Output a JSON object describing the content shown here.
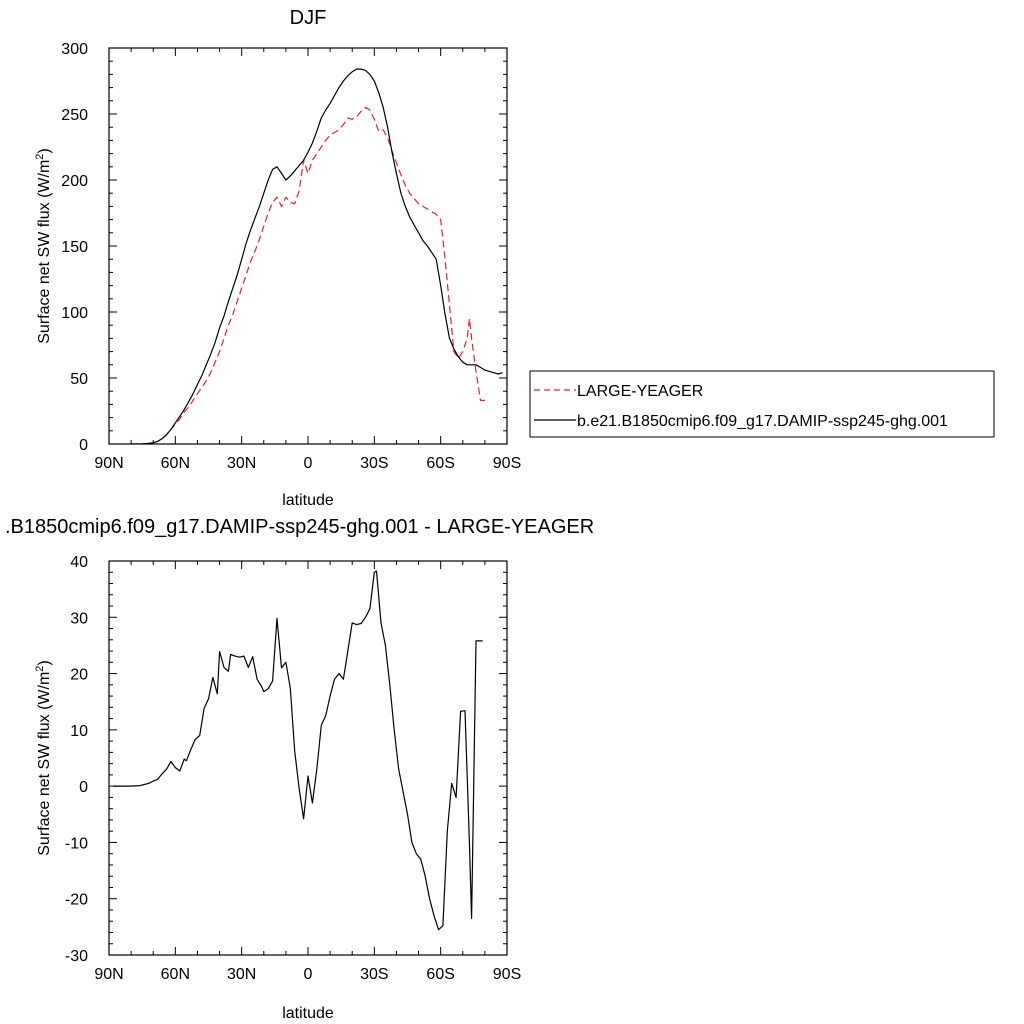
{
  "chart_data": [
    {
      "type": "line",
      "title": "DJF",
      "xlabel": "latitude",
      "ylabel": "Surface net SW flux (W/m",
      "ylabel_sup": "2",
      "ylabel_end": ")",
      "xlim": [
        -90,
        90
      ],
      "ylim": [
        0,
        300
      ],
      "xticks": [
        -90,
        -60,
        -30,
        0,
        30,
        60,
        90
      ],
      "xtick_labels": [
        "90N",
        "60N",
        "30N",
        "0",
        "30S",
        "60S",
        "90S"
      ],
      "yticks": [
        0,
        50,
        100,
        150,
        200,
        250,
        300
      ],
      "ytick_labels": [
        "0",
        "50",
        "100",
        "150",
        "200",
        "250",
        "300"
      ],
      "grid": false,
      "legend_placement": "right",
      "series": [
        {
          "name": "LARGE-YEAGER",
          "color": "#e8202a",
          "dash": "dashed",
          "x": [
            -80,
            -75,
            -72,
            -70,
            -68,
            -66,
            -64,
            -62,
            -60,
            -58,
            -56,
            -54,
            -52,
            -50,
            -48,
            -46,
            -44,
            -42,
            -40,
            -38,
            -36,
            -34,
            -32,
            -30,
            -28,
            -26,
            -24,
            -22,
            -20,
            -18,
            -16,
            -14,
            -12,
            -10,
            -8,
            -6,
            -4,
            -2,
            0,
            2,
            4,
            6,
            8,
            10,
            12,
            14,
            16,
            18,
            20,
            22,
            24,
            26,
            28,
            30,
            32,
            34,
            36,
            38,
            40,
            42,
            44,
            46,
            48,
            50,
            52,
            54,
            56,
            58,
            60,
            62,
            64,
            66,
            68,
            70,
            72,
            73,
            74,
            76,
            78,
            79,
            80
          ],
          "y": [
            0,
            0,
            0.5,
            1,
            2,
            4,
            7,
            11,
            15,
            19,
            24,
            28,
            33,
            38,
            43,
            48,
            54,
            62,
            70,
            80,
            90,
            98,
            108,
            118,
            128,
            138,
            146,
            155,
            165,
            175,
            183,
            187,
            180,
            187,
            183,
            182,
            192,
            215,
            205,
            215,
            220,
            225,
            230,
            234,
            236,
            238,
            242,
            247,
            246,
            248,
            252,
            255,
            253,
            246,
            237,
            238,
            232,
            222,
            213,
            204,
            196,
            190,
            186,
            182,
            180,
            178,
            176,
            174,
            170,
            140,
            105,
            70,
            65,
            70,
            80,
            95,
            80,
            55,
            33,
            33,
            33
          ]
        },
        {
          "name": "b.e21.B1850cmip6.f09_g17.DAMIP-ssp245-ghg.001",
          "color": "#000000",
          "dash": "solid",
          "x": [
            -80,
            -75,
            -72,
            -70,
            -68,
            -66,
            -64,
            -62,
            -60,
            -58,
            -56,
            -54,
            -52,
            -50,
            -48,
            -46,
            -44,
            -42,
            -40,
            -38,
            -36,
            -34,
            -32,
            -30,
            -28,
            -26,
            -24,
            -22,
            -20,
            -18,
            -16,
            -14,
            -12,
            -10,
            -8,
            -6,
            -4,
            -2,
            0,
            2,
            4,
            6,
            8,
            10,
            12,
            14,
            16,
            18,
            20,
            22,
            24,
            26,
            28,
            30,
            32,
            34,
            36,
            38,
            40,
            42,
            44,
            46,
            48,
            50,
            52,
            54,
            56,
            58,
            60,
            62,
            64,
            66,
            68,
            70,
            72,
            74,
            76,
            78,
            80,
            82,
            84,
            86,
            88
          ],
          "y": [
            0,
            0,
            0.5,
            1,
            2,
            4,
            7,
            11,
            16,
            21,
            26,
            32,
            38,
            45,
            52,
            60,
            68,
            77,
            88,
            97,
            108,
            118,
            128,
            140,
            152,
            162,
            171,
            180,
            190,
            200,
            208,
            210,
            205,
            200,
            203,
            207,
            211,
            215,
            221,
            228,
            237,
            247,
            253,
            258,
            264,
            270,
            275,
            279,
            282,
            284,
            284,
            283,
            280,
            275,
            266,
            255,
            240,
            221,
            205,
            190,
            180,
            172,
            166,
            160,
            154,
            150,
            145,
            140,
            120,
            98,
            80,
            72,
            66,
            62,
            60,
            60,
            60,
            58,
            56,
            55,
            54,
            53,
            54
          ]
        }
      ]
    },
    {
      "type": "line",
      "title": ".B1850cmip6.f09_g17.DAMIP-ssp245-ghg.001 - LARGE-YEAGER",
      "xlabel": "latitude",
      "ylabel": "Surface net SW flux (W/m",
      "ylabel_sup": "2",
      "ylabel_end": ")",
      "xlim": [
        -90,
        90
      ],
      "ylim": [
        -30,
        40
      ],
      "xticks": [
        -90,
        -60,
        -30,
        0,
        30,
        60,
        90
      ],
      "xtick_labels": [
        "90N",
        "60N",
        "30N",
        "0",
        "30S",
        "60S",
        "90S"
      ],
      "yticks": [
        -30,
        -20,
        -10,
        0,
        10,
        20,
        30,
        40
      ],
      "ytick_labels": [
        "-30",
        "-20",
        "-10",
        "0",
        "10",
        "20",
        "30",
        "40"
      ],
      "grid": false,
      "series": [
        {
          "color": "#000000",
          "dash": "solid",
          "x": [
            -88,
            -80,
            -76,
            -74,
            -72,
            -70,
            -68,
            -66,
            -64,
            -62,
            -60,
            -58,
            -56,
            -55,
            -53,
            -51,
            -49,
            -47,
            -45,
            -43,
            -41,
            -40,
            -38,
            -36,
            -35,
            -33,
            -31,
            -29,
            -27,
            -25,
            -23,
            -21,
            -20,
            -18,
            -16,
            -14,
            -12,
            -10,
            -8,
            -6,
            -4,
            -2,
            0,
            2,
            4,
            6,
            8,
            10,
            12,
            14,
            16,
            18,
            20,
            22,
            24,
            26,
            28,
            30,
            31,
            33,
            35,
            37,
            39,
            41,
            43,
            45,
            47,
            49,
            51,
            53,
            55,
            57,
            59,
            61,
            63,
            65,
            67,
            69,
            71,
            73,
            74,
            76,
            78,
            79
          ],
          "y": [
            0,
            0,
            0.1,
            0.3,
            0.5,
            0.9,
            1.2,
            2.2,
            3.0,
            4.4,
            3.3,
            2.7,
            4.8,
            4.5,
            6.5,
            8.3,
            9.0,
            13.8,
            15.5,
            19.3,
            16.4,
            23.9,
            21.1,
            20.4,
            23.4,
            23.1,
            22.9,
            23.1,
            21.1,
            23.0,
            19.0,
            17.7,
            16.8,
            17.3,
            18.7,
            29.8,
            21.0,
            22.0,
            17.4,
            6.2,
            -0.5,
            -5.8,
            1.8,
            -3.0,
            3.0,
            10.8,
            12.5,
            16.0,
            19.0,
            20.0,
            19.0,
            24.0,
            29.0,
            28.7,
            28.9,
            30.0,
            31.5,
            38.0,
            38.2,
            29.0,
            25.0,
            18.0,
            10.0,
            3.0,
            -1.0,
            -5.0,
            -10.0,
            -12.0,
            -13.0,
            -16.0,
            -20.0,
            -23.0,
            -25.5,
            -24.8,
            -8.0,
            0.5,
            -2.0,
            13.3,
            13.4,
            -10.0,
            -23.5,
            25.8,
            25.8,
            25.8
          ]
        }
      ]
    }
  ]
}
